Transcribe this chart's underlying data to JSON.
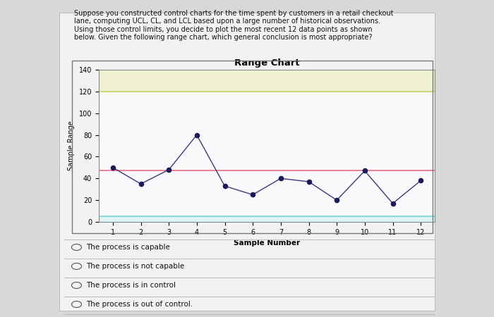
{
  "title": "Range Chart",
  "xlabel": "Sample Number",
  "ylabel": "Sample Range",
  "question_text": "Suppose you constructed control charts for the time spent by customers in a retail checkout\nlane, computing UCL, CL, and LCL based upon a large number of historical observations.\nUsing those control limits, you decide to plot the most recent 12 data points as shown\nbelow. Given the following range chart, which general conclusion is most appropriate?",
  "sample_numbers": [
    1,
    2,
    3,
    4,
    5,
    6,
    7,
    8,
    9,
    10,
    11,
    12
  ],
  "sample_ranges": [
    50,
    35,
    48,
    80,
    33,
    25,
    40,
    37,
    20,
    47,
    17,
    38
  ],
  "UCL": 120,
  "CL": 47,
  "LCL": 5,
  "ucl_color": "#c8d870",
  "cl_color": "#e87890",
  "lcl_color": "#80d8d0",
  "data_color": "#1a1a5a",
  "line_color": "#3a3a7a",
  "ylim": [
    0,
    140
  ],
  "yticks": [
    0,
    20,
    40,
    60,
    80,
    100,
    120,
    140
  ],
  "choices": [
    "The process is capable",
    "The process is not capable",
    "The process is in control",
    "The process is out of control."
  ],
  "outer_bg": "#d8d8d8",
  "inner_bg": "#f2f2f2",
  "plot_bg_color": "#ffffff",
  "chart_border_color": "#888888"
}
